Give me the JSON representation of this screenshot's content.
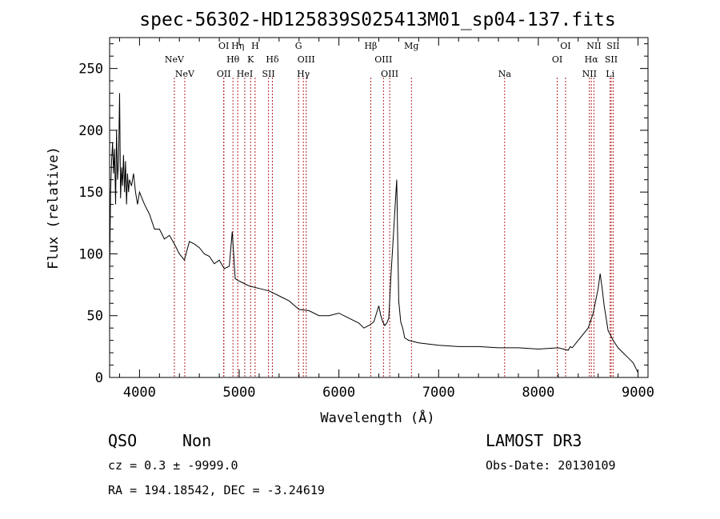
{
  "chart_data": {
    "type": "line",
    "title": "spec-56302-HD125839S025413M01_sp04-137.fits",
    "xlabel": "Wavelength (Å)",
    "ylabel": "Flux (relative)",
    "xlim": [
      3700,
      9100
    ],
    "ylim": [
      0,
      275
    ],
    "xticks": [
      4000,
      5000,
      6000,
      7000,
      8000,
      9000
    ],
    "yticks": [
      0,
      50,
      100,
      150,
      200,
      250
    ],
    "grid": false,
    "series": [
      {
        "color": "#000000",
        "x": [
          3700,
          3710,
          3720,
          3730,
          3740,
          3750,
          3760,
          3770,
          3780,
          3790,
          3800,
          3810,
          3820,
          3830,
          3840,
          3850,
          3860,
          3870,
          3880,
          3890,
          3900,
          3920,
          3940,
          3960,
          3980,
          4000,
          4050,
          4100,
          4150,
          4200,
          4250,
          4300,
          4350,
          4400,
          4450,
          4500,
          4550,
          4600,
          4650,
          4700,
          4750,
          4800,
          4850,
          4900,
          4930,
          4960,
          5000,
          5100,
          5200,
          5300,
          5400,
          5500,
          5600,
          5700,
          5800,
          5900,
          6000,
          6100,
          6200,
          6250,
          6300,
          6350,
          6400,
          6420,
          6440,
          6460,
          6480,
          6500,
          6520,
          6550,
          6580,
          6600,
          6620,
          6640,
          6660,
          6700,
          6800,
          6900,
          7000,
          7200,
          7400,
          7600,
          7800,
          8000,
          8200,
          8300,
          8320,
          8340,
          8400,
          8500,
          8550,
          8580,
          8600,
          8620,
          8640,
          8660,
          8680,
          8700,
          8750,
          8800,
          8850,
          8900,
          8950,
          9000
        ],
        "y": [
          80,
          150,
          175,
          190,
          165,
          185,
          140,
          200,
          160,
          175,
          230,
          145,
          170,
          155,
          180,
          150,
          175,
          140,
          165,
          150,
          160,
          155,
          165,
          150,
          140,
          150,
          140,
          132,
          120,
          120,
          112,
          115,
          108,
          100,
          95,
          110,
          108,
          105,
          100,
          98,
          92,
          95,
          88,
          90,
          118,
          80,
          78,
          74,
          72,
          70,
          66,
          62,
          55,
          54,
          50,
          50,
          52,
          48,
          44,
          40,
          42,
          45,
          58,
          50,
          45,
          42,
          44,
          48,
          80,
          120,
          160,
          62,
          45,
          40,
          32,
          30,
          28,
          27,
          26,
          25,
          25,
          24,
          24,
          23,
          24,
          22,
          25,
          24,
          30,
          40,
          52,
          64,
          72,
          84,
          72,
          58,
          48,
          38,
          30,
          24,
          20,
          16,
          12,
          4
        ]
      }
    ]
  },
  "lines": [
    {
      "label": "NeV",
      "wavelength": 3426,
      "row": 3
    },
    {
      "label": "NeV",
      "wavelength": 3346,
      "row": 2
    },
    {
      "label": "OII",
      "wavelength": 3727,
      "row": 3
    },
    {
      "label": "OI",
      "wavelength": 3727,
      "row": 1
    },
    {
      "label": "Hθ",
      "wavelength": 3798,
      "row": 2
    },
    {
      "label": "Hη",
      "wavelength": 3835,
      "row": 1
    },
    {
      "label": "HeI",
      "wavelength": 3889,
      "row": 3
    },
    {
      "label": "K",
      "wavelength": 3934,
      "row": 2
    },
    {
      "label": "H",
      "wavelength": 3969,
      "row": 1
    },
    {
      "label": "Hδ",
      "wavelength": 4102,
      "row": 2
    },
    {
      "label": "SII",
      "wavelength": 4072,
      "row": 3
    },
    {
      "label": "G",
      "wavelength": 4304,
      "row": 1
    },
    {
      "label": "OIII",
      "wavelength": 4363,
      "row": 2
    },
    {
      "label": "Hγ",
      "wavelength": 4341,
      "row": 3
    },
    {
      "label": "Hβ",
      "wavelength": 4861,
      "row": 1
    },
    {
      "label": "OIII",
      "wavelength": 4959,
      "row": 2
    },
    {
      "label": "OIII",
      "wavelength": 5007,
      "row": 3
    },
    {
      "label": "Mg",
      "wavelength": 5175,
      "row": 1
    },
    {
      "label": "Na",
      "wavelength": 5894,
      "row": 3
    },
    {
      "label": "OI",
      "wavelength": 6300,
      "row": 2
    },
    {
      "label": "OI",
      "wavelength": 6364,
      "row": 1
    },
    {
      "label": "NII",
      "wavelength": 6548,
      "row": 3
    },
    {
      "label": "Hα",
      "wavelength": 6563,
      "row": 2
    },
    {
      "label": "NII",
      "wavelength": 6583,
      "row": 1
    },
    {
      "label": "SII",
      "wavelength": 6716,
      "row": 2
    },
    {
      "label": "Li",
      "wavelength": 6708,
      "row": 3
    },
    {
      "label": "SII",
      "wavelength": 6731,
      "row": 1
    }
  ],
  "redshift_factor": 1.3,
  "info": {
    "class": "QSO",
    "subclass": "Non",
    "survey": "LAMOST DR3",
    "cz": "cz = 0.3 ± -9999.0",
    "obs_date": "Obs-Date: 20130109",
    "coords": "RA = 194.18542, DEC =  -3.24619"
  }
}
